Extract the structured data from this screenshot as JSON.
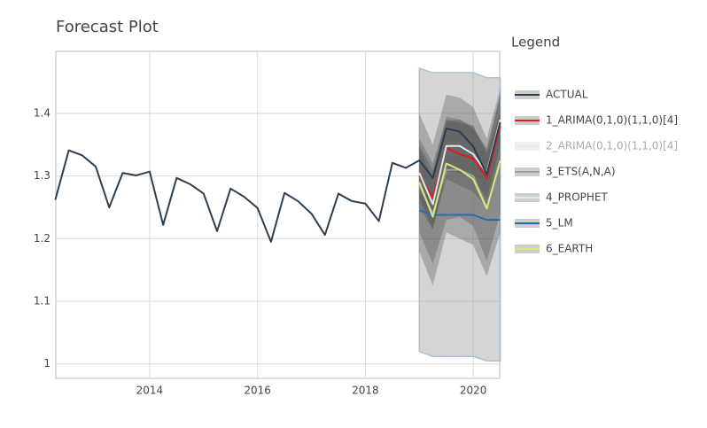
{
  "chart_data": {
    "type": "line",
    "title": "Forecast Plot",
    "legend_title": "Legend",
    "legend": "right",
    "grid": true,
    "xlim": [
      2012.26,
      2020.49
    ],
    "xticks": [
      2014,
      2016,
      2018,
      2020
    ],
    "ylim": [
      0.977,
      1.499
    ],
    "yticks": [
      1,
      1.1,
      1.2,
      1.3,
      1.4
    ],
    "series": [
      {
        "name": "ACTUAL",
        "color": "#2c3e50",
        "x": [
          2012.25,
          2012.5,
          2012.75,
          2013,
          2013.25,
          2013.5,
          2013.75,
          2014,
          2014.25,
          2014.5,
          2014.75,
          2015,
          2015.25,
          2015.5,
          2015.75,
          2016,
          2016.25,
          2016.5,
          2016.75,
          2017,
          2017.25,
          2017.5,
          2017.75,
          2018,
          2018.25,
          2018.5,
          2018.75,
          2019,
          2019.25,
          2019.5,
          2019.75,
          2020,
          2020.25,
          2020.5
        ],
        "values": [
          1.262,
          1.341,
          1.333,
          1.315,
          1.25,
          1.305,
          1.301,
          1.307,
          1.222,
          1.297,
          1.287,
          1.272,
          1.212,
          1.28,
          1.267,
          1.249,
          1.195,
          1.273,
          1.26,
          1.24,
          1.206,
          1.272,
          1.26,
          1.256,
          1.228,
          1.321,
          1.313,
          1.325,
          1.297,
          1.376,
          1.371,
          1.347,
          1.303,
          1.386
        ]
      },
      {
        "name": "1_ARIMA(0,1,0)(1,1,0)[4]",
        "color": "#e31a1c",
        "visible": true,
        "x": [
          2019,
          2019.25,
          2019.5,
          2019.75,
          2020,
          2020.25,
          2020.5
        ],
        "values": [
          1.3,
          1.265,
          1.345,
          1.335,
          1.328,
          1.297,
          1.38
        ],
        "hi": [
          1.35,
          1.31,
          1.395,
          1.39,
          1.38,
          1.34,
          1.43
        ],
        "lo": [
          1.25,
          1.215,
          1.295,
          1.285,
          1.275,
          1.25,
          1.33
        ]
      },
      {
        "name": "2_ARIMA(0,1,0)(1,1,0)[4]",
        "color": "#dce6ec",
        "visible": false
      },
      {
        "name": "3_ETS(A,N,A)",
        "color": "#9e9e9e",
        "visible": true,
        "x": [
          2019,
          2019.25,
          2019.5,
          2019.75,
          2020,
          2020.25,
          2020.5
        ],
        "values": [
          1.285,
          1.24,
          1.31,
          1.31,
          1.3,
          1.25,
          1.32
        ],
        "hi": [
          1.36,
          1.32,
          1.39,
          1.385,
          1.38,
          1.335,
          1.4
        ],
        "lo": [
          1.21,
          1.16,
          1.23,
          1.235,
          1.22,
          1.165,
          1.24
        ]
      },
      {
        "name": "4_PROPHET",
        "color": "#dfe9f0",
        "visible": true,
        "x": [
          2019,
          2019.25,
          2019.5,
          2019.75,
          2020,
          2020.25,
          2020.5
        ],
        "values": [
          1.305,
          1.255,
          1.348,
          1.348,
          1.335,
          1.305,
          1.39
        ],
        "hi": [
          1.345,
          1.295,
          1.388,
          1.39,
          1.375,
          1.345,
          1.43
        ],
        "lo": [
          1.265,
          1.215,
          1.308,
          1.305,
          1.295,
          1.265,
          1.35
        ]
      },
      {
        "name": "5_LM",
        "color": "#1f6fb4",
        "visible": true,
        "x": [
          2019,
          2019.25,
          2019.5,
          2019.75,
          2020,
          2020.25,
          2020.5
        ],
        "values": [
          1.245,
          1.238,
          1.238,
          1.238,
          1.238,
          1.23,
          1.23
        ],
        "hi": [
          1.472,
          1.465,
          1.465,
          1.465,
          1.465,
          1.457,
          1.457
        ],
        "lo": [
          1.02,
          1.012,
          1.012,
          1.012,
          1.012,
          1.005,
          1.005
        ]
      },
      {
        "name": "6_EARTH",
        "color": "#d4e77b",
        "visible": true,
        "x": [
          2019,
          2019.25,
          2019.5,
          2019.75,
          2020,
          2020.25,
          2020.5
        ],
        "values": [
          1.29,
          1.235,
          1.32,
          1.31,
          1.295,
          1.248,
          1.325
        ],
        "hi": [
          1.4,
          1.35,
          1.43,
          1.425,
          1.41,
          1.36,
          1.44
        ],
        "lo": [
          1.18,
          1.125,
          1.21,
          1.2,
          1.19,
          1.14,
          1.21
        ]
      }
    ]
  }
}
